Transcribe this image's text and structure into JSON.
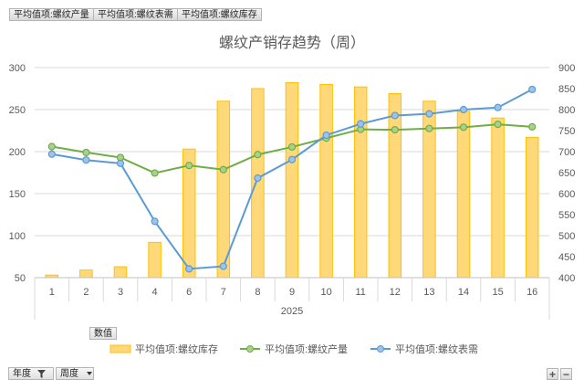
{
  "pivot_value_fields": [
    "平均值项:螺纹产量",
    "平均值项:螺纹表需",
    "平均值项:螺纹库存"
  ],
  "values_field_label": "数值",
  "axis_fields": [
    {
      "label": "年度",
      "icon": "filter-icon"
    },
    {
      "label": "周度",
      "icon": "chevron-down-icon"
    }
  ],
  "zoom_buttons": {
    "expand": "+",
    "collapse": "−"
  },
  "chart_data": {
    "type": "bar+line",
    "title": "螺纹产销存趋势（周）",
    "group_label": "2025",
    "categories": [
      "1",
      "2",
      "3",
      "4",
      "6",
      "7",
      "8",
      "9",
      "10",
      "11",
      "12",
      "13",
      "14",
      "15",
      "16"
    ],
    "y_left": {
      "min": 50,
      "max": 300,
      "ticks": [
        50,
        100,
        150,
        200,
        250,
        300
      ]
    },
    "y_right": {
      "min": 400,
      "max": 900,
      "ticks": [
        400,
        450,
        500,
        550,
        600,
        650,
        700,
        750,
        800,
        850,
        900
      ]
    },
    "grid": true,
    "legend_position": "bottom",
    "series": [
      {
        "name": "平均值项:螺纹库存",
        "type": "bar",
        "axis": "left",
        "color": "#ffc000",
        "values": [
          53,
          59,
          63,
          92,
          203,
          260,
          275,
          282,
          280,
          277,
          269,
          260,
          248,
          240,
          217
        ]
      },
      {
        "name": "平均值项:螺纹产量",
        "type": "line",
        "axis": "right",
        "color": "#70ad47",
        "values": [
          712,
          698,
          686,
          649,
          667,
          657,
          693,
          711,
          732,
          753,
          752,
          755,
          758,
          765,
          759
        ]
      },
      {
        "name": "平均值项:螺纹表需",
        "type": "line",
        "axis": "right",
        "color": "#5b9bd5",
        "values": [
          694,
          680,
          672,
          534,
          421,
          427,
          637,
          681,
          739,
          766,
          786,
          790,
          800,
          805,
          848
        ]
      }
    ]
  }
}
